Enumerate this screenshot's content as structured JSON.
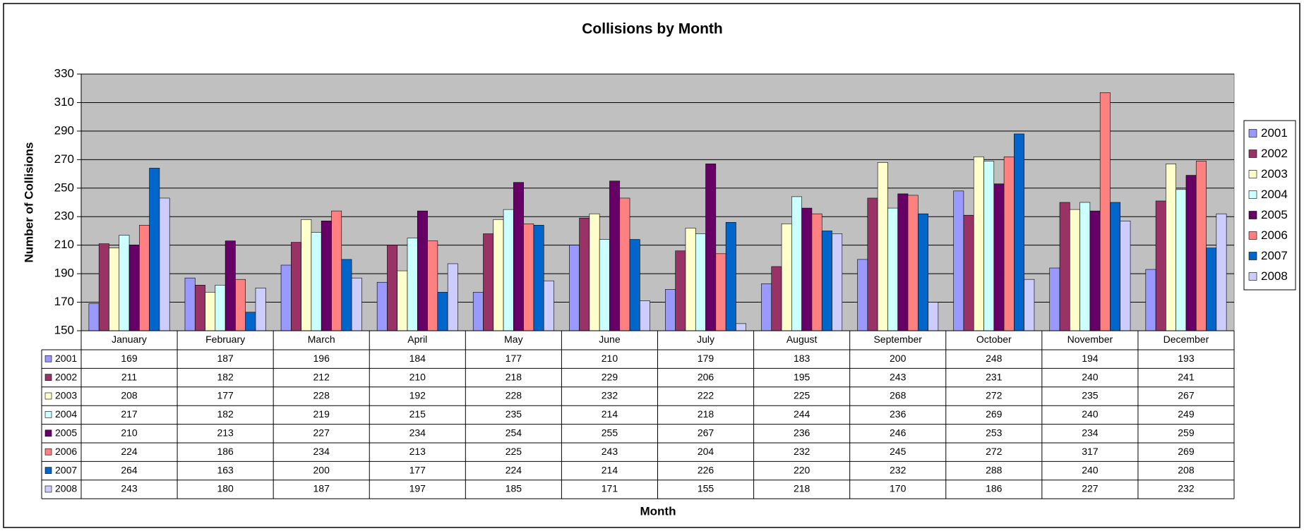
{
  "chart_data": {
    "type": "bar",
    "title": "Collisions by Month",
    "x_label": "Month",
    "y_label": "Number of Collisions",
    "categories": [
      "January",
      "February",
      "March",
      "April",
      "May",
      "June",
      "July",
      "August",
      "September",
      "October",
      "November",
      "December"
    ],
    "series": [
      {
        "name": "2001",
        "color": "#9999ff",
        "values": [
          169,
          187,
          196,
          184,
          177,
          210,
          179,
          183,
          200,
          248,
          194,
          193
        ]
      },
      {
        "name": "2002",
        "color": "#993366",
        "values": [
          211,
          182,
          212,
          210,
          218,
          229,
          206,
          195,
          243,
          231,
          240,
          241
        ]
      },
      {
        "name": "2003",
        "color": "#ffffcc",
        "values": [
          208,
          177,
          228,
          192,
          228,
          232,
          222,
          225,
          268,
          272,
          235,
          267
        ]
      },
      {
        "name": "2004",
        "color": "#ccffff",
        "values": [
          217,
          182,
          219,
          215,
          235,
          214,
          218,
          244,
          236,
          269,
          240,
          249
        ]
      },
      {
        "name": "2005",
        "color": "#660066",
        "values": [
          210,
          213,
          227,
          234,
          254,
          255,
          267,
          236,
          246,
          253,
          234,
          259
        ]
      },
      {
        "name": "2006",
        "color": "#ff8080",
        "values": [
          224,
          186,
          234,
          213,
          225,
          243,
          204,
          232,
          245,
          272,
          317,
          269
        ]
      },
      {
        "name": "2007",
        "color": "#0066cc",
        "values": [
          264,
          163,
          200,
          177,
          224,
          214,
          226,
          220,
          232,
          288,
          240,
          208
        ]
      },
      {
        "name": "2008",
        "color": "#ccccff",
        "values": [
          243,
          180,
          187,
          197,
          185,
          171,
          155,
          218,
          170,
          186,
          227,
          232
        ]
      }
    ],
    "ylim": [
      150,
      330
    ],
    "yticks": [
      150,
      170,
      190,
      210,
      230,
      250,
      270,
      290,
      310,
      330
    ],
    "grid": true,
    "legend": "right"
  }
}
